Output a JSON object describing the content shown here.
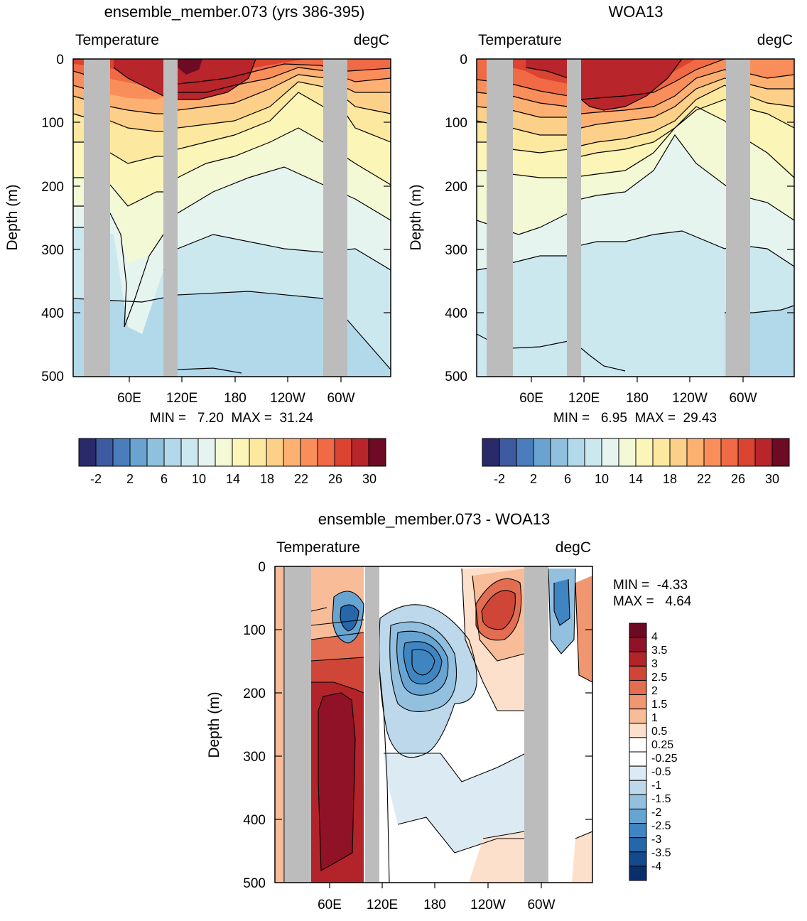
{
  "chart_data": [
    {
      "type": "heatmap",
      "title": "ensemble_member.073 (yrs 386-395)",
      "left_label": "Temperature",
      "right_label": "degC",
      "ylabel": "Depth (m)",
      "ylim": [
        0,
        500
      ],
      "y_reversed": true,
      "yticks": [
        "0",
        "100",
        "200",
        "300",
        "400",
        "500"
      ],
      "xticks": [
        "60E",
        "120E",
        "180",
        "120W",
        "60W"
      ],
      "stats_text": "MIN =   7.20  MAX =  31.24",
      "colorbar_labels": [
        "-2",
        "2",
        "6",
        "10",
        "14",
        "18",
        "22",
        "26",
        "30"
      ],
      "contour_levels": [
        -4,
        -2,
        0,
        2,
        4,
        6,
        8,
        10,
        12,
        14,
        16,
        18,
        20,
        22,
        24,
        26,
        28,
        30
      ]
    },
    {
      "type": "heatmap",
      "title": "WOA13",
      "left_label": "Temperature",
      "right_label": "degC",
      "ylabel": "Depth (m)",
      "ylim": [
        0,
        500
      ],
      "y_reversed": true,
      "yticks": [
        "0",
        "100",
        "200",
        "300",
        "400",
        "500"
      ],
      "xticks": [
        "60E",
        "120E",
        "180",
        "120W",
        "60W"
      ],
      "stats_text": "MIN =   6.95  MAX =  29.43",
      "colorbar_labels": [
        "-2",
        "2",
        "6",
        "10",
        "14",
        "18",
        "22",
        "26",
        "30"
      ],
      "contour_levels": [
        -4,
        -2,
        0,
        2,
        4,
        6,
        8,
        10,
        12,
        14,
        16,
        18,
        20,
        22,
        24,
        26,
        28,
        30
      ]
    },
    {
      "type": "heatmap",
      "title": "ensemble_member.073 - WOA13",
      "left_label": "Temperature",
      "right_label": "degC",
      "ylabel": "Depth (m)",
      "ylim": [
        0,
        500
      ],
      "y_reversed": true,
      "yticks": [
        "0",
        "100",
        "200",
        "300",
        "400",
        "500"
      ],
      "xticks": [
        "60E",
        "120E",
        "180",
        "120W",
        "60W"
      ],
      "stats_min": "MIN =  -4.33",
      "stats_max": "MAX =   4.64",
      "colorbar_labels": [
        "4",
        "3.5",
        "3",
        "2.5",
        "2",
        "1.5",
        "1",
        "0.5",
        "0.25",
        "-0.25",
        "-0.5",
        "-1",
        "-1.5",
        "-2",
        "-2.5",
        "-3",
        "-3.5",
        "-4"
      ]
    }
  ],
  "colors": {
    "temperature_scale": [
      "#2a2a6b",
      "#3e5aa0",
      "#4a7dbc",
      "#6aa3cf",
      "#8fc0de",
      "#b2d9ea",
      "#cce8ef",
      "#e6f4f0",
      "#f3f9d5",
      "#fcf5b8",
      "#fde8a0",
      "#fdd08a",
      "#fcb071",
      "#f98e5b",
      "#ef6a45",
      "#db4430",
      "#b8252a",
      "#6d0a24"
    ],
    "difference_scale": [
      "#6b0a22",
      "#8f1226",
      "#b2232a",
      "#cf4639",
      "#e26d51",
      "#f09670",
      "#f8bc99",
      "#fde0cb",
      "#ffffff",
      "#ffffff",
      "#dcebf3",
      "#bcd8ea",
      "#93c0df",
      "#68a4d1",
      "#3f85c1",
      "#2567aa",
      "#134a8d",
      "#0a2f6d"
    ],
    "land_mask": "#bcbcbc"
  }
}
